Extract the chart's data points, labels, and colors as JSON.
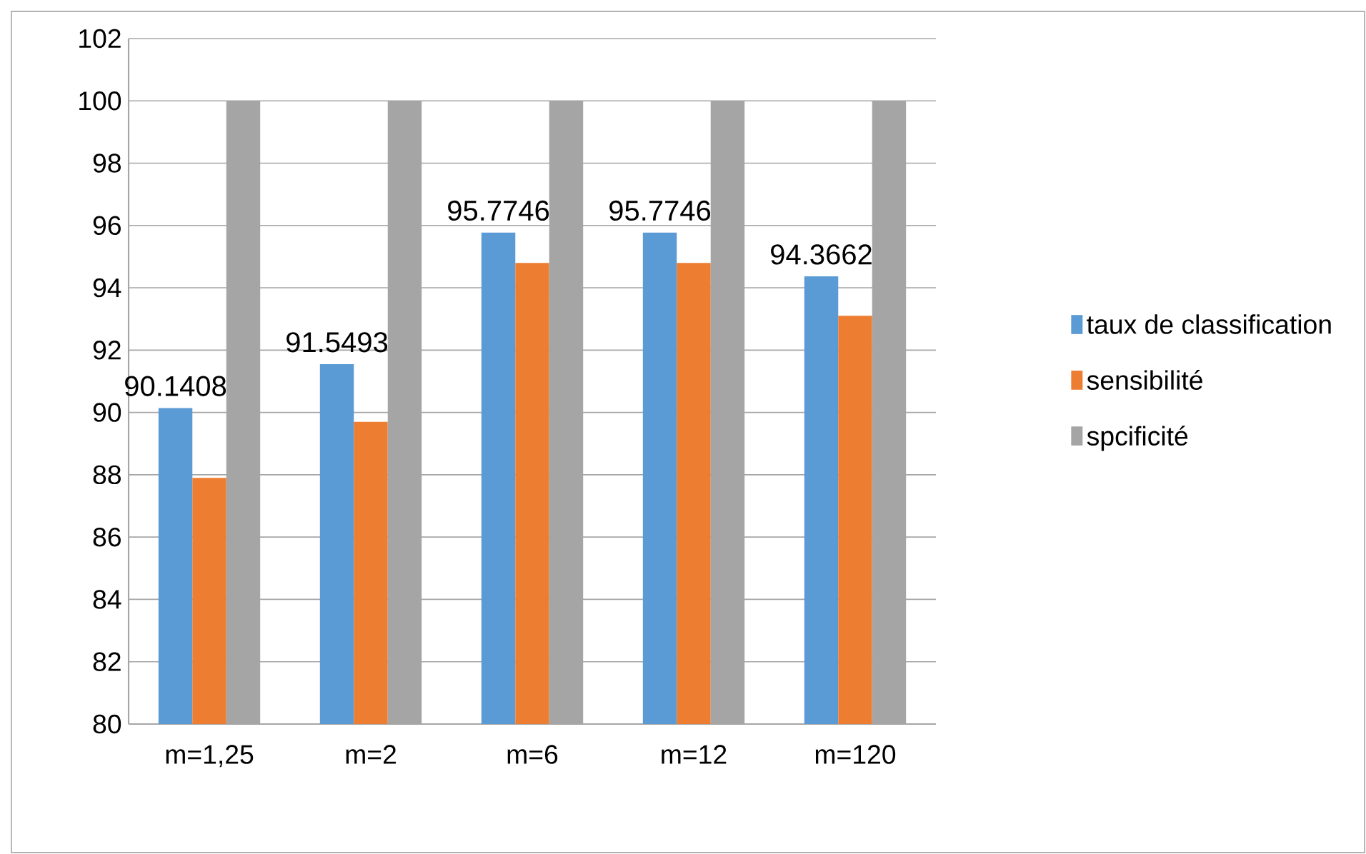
{
  "chart_data": {
    "type": "bar",
    "categories": [
      "m=1,25",
      "m=2",
      "m=6",
      "m=12",
      "m=120"
    ],
    "series": [
      {
        "name": "taux  de classification",
        "color": "#5b9bd5",
        "values": [
          90.1408,
          91.5493,
          95.7746,
          95.7746,
          94.3662
        ],
        "value_labels": [
          "90.1408",
          "91.5493",
          "95.7746",
          "95.7746",
          "94.3662"
        ]
      },
      {
        "name": "sensibilité",
        "color": "#ed7d31",
        "values": [
          87.9,
          89.7,
          94.8,
          94.8,
          93.1
        ]
      },
      {
        "name": "spcificité",
        "color": "#a5a5a5",
        "values": [
          100,
          100,
          100,
          100,
          100
        ]
      }
    ],
    "ylim": [
      80,
      102
    ],
    "yticks": [
      80,
      82,
      84,
      86,
      88,
      90,
      92,
      94,
      96,
      98,
      100,
      102
    ],
    "grid": "y",
    "legend": "right"
  }
}
